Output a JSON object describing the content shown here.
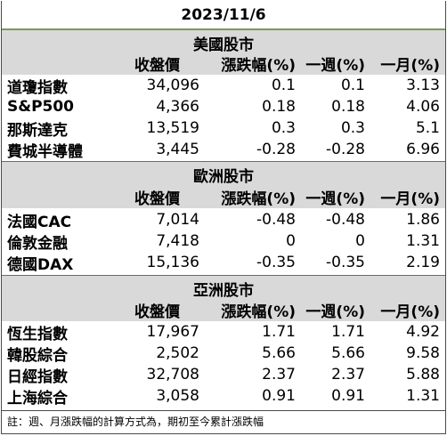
{
  "title": "2023/11/6",
  "columns": [
    "收盤價",
    "漲跌幅(%)",
    "一週(%)",
    "一月(%)"
  ],
  "sections": [
    {
      "name": "美國股市",
      "rows": [
        {
          "name": "道瓊指數",
          "close": "34,096",
          "change": "0.1",
          "week": "0.1",
          "month": "3.13"
        },
        {
          "name": "S&P500",
          "close": "4,366",
          "change": "0.18",
          "week": "0.18",
          "month": "4.06"
        },
        {
          "name": "那斯達克",
          "close": "13,519",
          "change": "0.3",
          "week": "0.3",
          "month": "5.1"
        },
        {
          "name": "費城半導體",
          "close": "3,445",
          "change": "-0.28",
          "week": "-0.28",
          "month": "6.96"
        }
      ]
    },
    {
      "name": "歐洲股市",
      "rows": [
        {
          "name": "法國CAC",
          "close": "7,014",
          "change": "-0.48",
          "week": "-0.48",
          "month": "1.86"
        },
        {
          "name": "倫敦金融",
          "close": "7,418",
          "change": "0",
          "week": "0",
          "month": "1.31"
        },
        {
          "name": "德國DAX",
          "close": "15,136",
          "change": "-0.35",
          "week": "-0.35",
          "month": "2.19"
        }
      ]
    },
    {
      "name": "亞洲股市",
      "rows": [
        {
          "name": "恆生指數",
          "close": "17,967",
          "change": "1.71",
          "week": "1.71",
          "month": "4.92"
        },
        {
          "name": "韓股綜合",
          "close": "2,502",
          "change": "5.66",
          "week": "5.66",
          "month": "9.58"
        },
        {
          "name": "日經指數",
          "close": "32,708",
          "change": "2.37",
          "week": "2.37",
          "month": "5.88"
        },
        {
          "name": "上海綜合",
          "close": "3,058",
          "change": "0.91",
          "week": "0.91",
          "month": "1.31"
        }
      ]
    }
  ],
  "note": "註：週、月漲跌幅的計算方式為，期初至今累計漲跌幅"
}
